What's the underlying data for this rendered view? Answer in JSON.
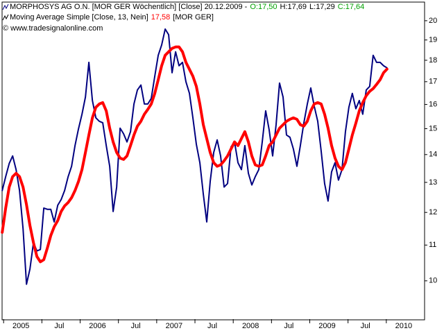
{
  "chart_data": {
    "type": "line",
    "log_scale": true,
    "grid": false,
    "x": [
      2004.982,
      2005.027,
      2005.073,
      2005.118,
      2005.163,
      2005.208,
      2005.254,
      2005.299,
      2005.344,
      2005.39,
      2005.435,
      2005.48,
      2005.525,
      2005.571,
      2005.616,
      2005.661,
      2005.707,
      2005.752,
      2005.797,
      2005.843,
      2005.888,
      2005.933,
      2005.978,
      2006.024,
      2006.069,
      2006.114,
      2006.16,
      2006.205,
      2006.25,
      2006.295,
      2006.341,
      2006.386,
      2006.431,
      2006.477,
      2006.522,
      2006.567,
      2006.612,
      2006.658,
      2006.703,
      2006.748,
      2006.794,
      2006.839,
      2006.884,
      2006.929,
      2006.975,
      2007.02,
      2007.065,
      2007.111,
      2007.156,
      2007.201,
      2007.247,
      2007.292,
      2007.337,
      2007.382,
      2007.428,
      2007.473,
      2007.518,
      2007.564,
      2007.609,
      2007.654,
      2007.699,
      2007.745,
      2007.79,
      2007.835,
      2007.881,
      2007.926,
      2007.971,
      2008.017,
      2008.062,
      2008.107,
      2008.152,
      2008.198,
      2008.243,
      2008.288,
      2008.334,
      2008.379,
      2008.424,
      2008.469,
      2008.515,
      2008.56,
      2008.605,
      2008.651,
      2008.696,
      2008.741,
      2008.786,
      2008.832,
      2008.877,
      2008.922,
      2008.968,
      2009.013,
      2009.058,
      2009.104,
      2009.149,
      2009.194,
      2009.239,
      2009.285,
      2009.33,
      2009.375,
      2009.421,
      2009.466,
      2009.511,
      2009.556,
      2009.602,
      2009.647,
      2009.692,
      2009.738,
      2009.783,
      2009.828,
      2009.873,
      2009.919,
      2009.964,
      2010.009
    ],
    "series": [
      {
        "name": "MORPHOSYS AG O.N. [MOR GER  Wöchentlich] [Close] 20.12.2009 -",
        "color": "#000080",
        "quote": [
          "O:17,50",
          "H:17,69",
          "L:17,29",
          "C:17,64"
        ],
        "quote_colors": [
          "#00a000",
          "#000000",
          "#000000",
          "#00a000"
        ],
        "values": [
          12.72,
          13.2,
          13.67,
          13.95,
          13.45,
          12.72,
          11.49,
          9.91,
          10.32,
          11.07,
          10.83,
          10.87,
          12.14,
          12.1,
          12.1,
          11.7,
          12.23,
          12.42,
          12.72,
          13.2,
          13.57,
          14.34,
          14.99,
          15.59,
          16.32,
          17.9,
          16.17,
          15.44,
          15.3,
          15.24,
          14.34,
          13.57,
          12.03,
          12.84,
          15.02,
          14.8,
          14.48,
          14.88,
          16.02,
          16.63,
          16.85,
          16.02,
          16.02,
          16.26,
          17.25,
          18.24,
          18.75,
          19.56,
          19.27,
          17.41,
          18.41,
          17.74,
          17.9,
          17.0,
          16.48,
          15.44,
          14.39,
          13.7,
          12.6,
          11.7,
          13.03,
          14.08,
          14.56,
          13.95,
          12.84,
          12.96,
          14.29,
          14.48,
          13.7,
          13.45,
          14.34,
          13.32,
          12.91,
          13.2,
          13.45,
          14.48,
          15.73,
          14.96,
          13.95,
          15.16,
          16.94,
          16.32,
          14.75,
          14.66,
          14.21,
          13.57,
          14.34,
          15.22,
          16.02,
          16.72,
          15.93,
          15.3,
          14.13,
          12.96,
          12.37,
          13.37,
          13.7,
          13.08,
          13.45,
          14.88,
          15.88,
          16.48,
          15.82,
          16.17,
          15.59,
          16.63,
          16.79,
          18.24,
          17.9,
          17.9,
          17.74,
          17.64
        ]
      },
      {
        "name": "Moving Average Simple [Close, 13, Nein]",
        "color": "#ff0000",
        "value_label": "17,58",
        "source": "[MOR GER]",
        "values": [
          11.38,
          12.14,
          12.84,
          13.2,
          13.32,
          13.2,
          12.84,
          12.25,
          11.59,
          11.07,
          10.67,
          10.52,
          10.58,
          10.91,
          11.28,
          11.55,
          11.74,
          12.03,
          12.21,
          12.32,
          12.48,
          12.72,
          13.03,
          13.45,
          14.08,
          14.75,
          15.44,
          15.88,
          16.02,
          16.08,
          15.73,
          15.02,
          14.48,
          14.08,
          13.87,
          13.82,
          13.95,
          14.34,
          14.75,
          15.1,
          15.3,
          15.59,
          15.79,
          16.02,
          16.48,
          17.09,
          17.74,
          18.24,
          18.41,
          18.58,
          18.65,
          18.65,
          18.41,
          17.9,
          17.57,
          17.25,
          16.79,
          16.02,
          15.16,
          14.61,
          14.08,
          13.7,
          13.57,
          13.62,
          13.77,
          13.95,
          14.21,
          14.48,
          14.34,
          14.61,
          14.88,
          14.48,
          13.95,
          13.62,
          13.57,
          13.62,
          13.95,
          14.34,
          14.48,
          14.75,
          15.02,
          15.16,
          15.3,
          15.38,
          15.44,
          15.38,
          15.16,
          15.1,
          15.3,
          15.73,
          16.02,
          16.08,
          16.02,
          15.59,
          15.02,
          14.34,
          13.87,
          13.57,
          13.45,
          13.7,
          14.21,
          14.75,
          15.22,
          15.73,
          16.08,
          16.38,
          16.57,
          16.69,
          16.88,
          17.09,
          17.41,
          17.58
        ]
      }
    ],
    "credit": "© www.tradesignalonline.com",
    "xlim": [
      2004.98,
      2010.5
    ],
    "xticks": [
      2005,
      {
        "value": 2005.5,
        "label": "Jul"
      },
      2006,
      {
        "value": 2006.5,
        "label": "Jul"
      },
      2007,
      {
        "value": 2007.5,
        "label": "Jul"
      },
      2008,
      {
        "value": 2008.5,
        "label": "Jul"
      },
      2009,
      {
        "value": 2009.5,
        "label": "Jul"
      },
      2010
    ],
    "ylim": [
      9.03,
      20.98
    ],
    "yticks": [
      10,
      11,
      12,
      13,
      14,
      15,
      16,
      17,
      18,
      19,
      20
    ]
  }
}
